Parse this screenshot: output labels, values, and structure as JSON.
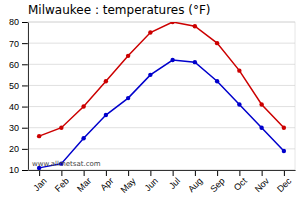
{
  "chart_data": {
    "type": "line",
    "title": "Milwaukee : temperatures (°F)",
    "categories": [
      "Jan",
      "Feb",
      "Mar",
      "Apr",
      "May",
      "Jun",
      "Jul",
      "Aug",
      "Sep",
      "Oct",
      "Nov",
      "Dec"
    ],
    "series": [
      {
        "color": "#cc0000",
        "marker": "circle",
        "line_style": "solid",
        "values": [
          26,
          30,
          40,
          52,
          64,
          75,
          80,
          78,
          70,
          57,
          41,
          30
        ]
      },
      {
        "color": "#0000cc",
        "marker": "circle",
        "line_style": "solid",
        "values": [
          11,
          13,
          25,
          36,
          44,
          55,
          62,
          61,
          52,
          41,
          30,
          19
        ]
      }
    ],
    "ylim": [
      10,
      80
    ],
    "yticks": [
      10,
      20,
      30,
      40,
      50,
      60,
      70,
      80
    ],
    "grid": true,
    "annotations": [
      "www.allmetsat.com"
    ]
  }
}
